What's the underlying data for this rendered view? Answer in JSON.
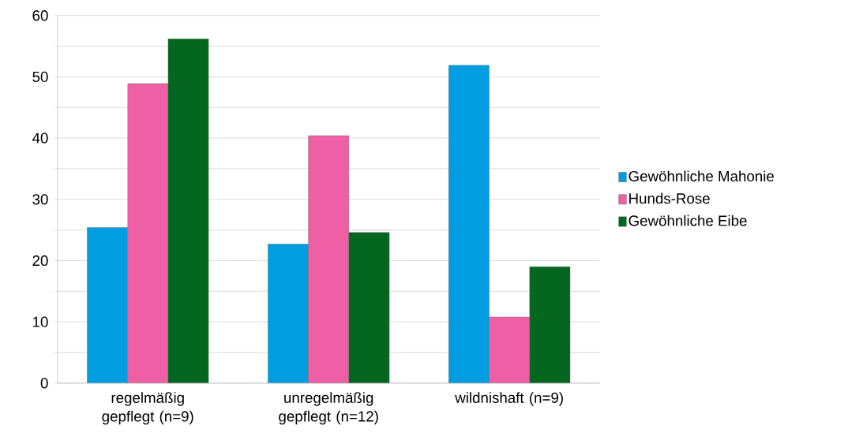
{
  "chart_data": {
    "type": "bar",
    "categories": [
      "regelmäßig gepflegt (n=9)",
      "unregelmäßig gepflegt (n=12)",
      "wildnishaft (n=9)"
    ],
    "series": [
      {
        "name": "Gewöhnliche Mahonie",
        "color": "#009ee0",
        "values": [
          25.4,
          22.7,
          51.9
        ]
      },
      {
        "name": "Hunds-Rose",
        "color": "#ee5fa5",
        "values": [
          48.9,
          40.4,
          10.8
        ]
      },
      {
        "name": "Gewöhnliche Eibe",
        "color": "#056620",
        "values": [
          56.2,
          24.6,
          19.0
        ]
      }
    ],
    "ylim": [
      0,
      60
    ],
    "yticks": [
      0,
      {
        "value": 5,
        "label": null
      },
      10,
      {
        "value": 15,
        "label": null
      },
      20,
      {
        "value": 25,
        "label": null
      },
      30,
      {
        "value": 35,
        "label": null
      },
      40,
      {
        "value": 45,
        "label": null
      },
      50,
      {
        "value": 55,
        "label": null
      },
      60
    ],
    "grid": "y",
    "legend": "right"
  }
}
